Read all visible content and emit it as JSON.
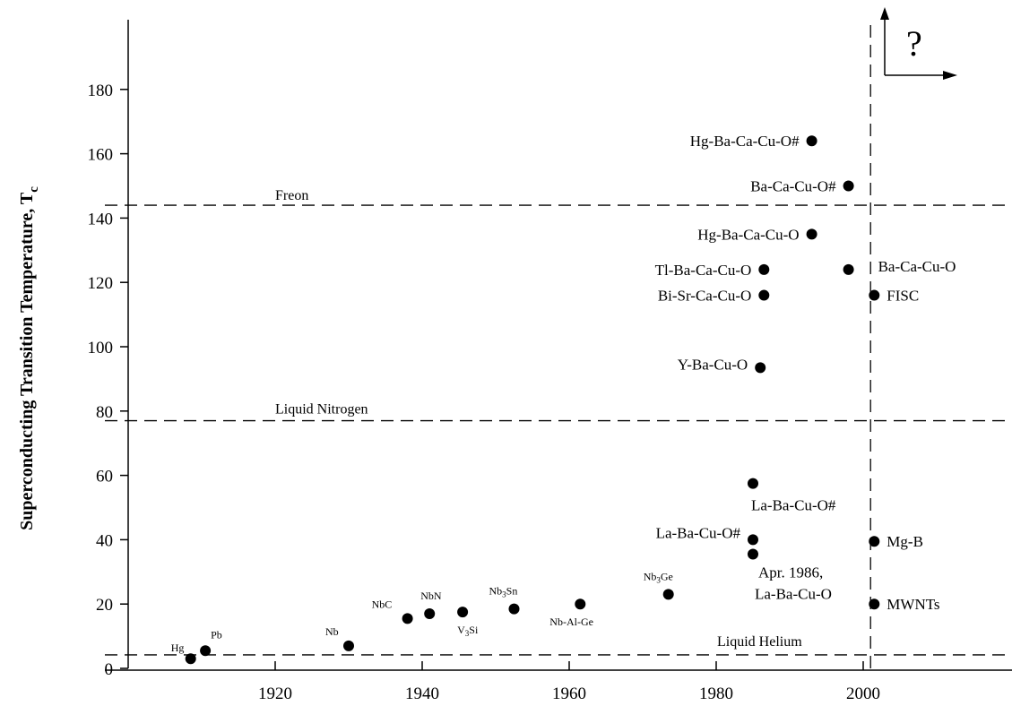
{
  "chart_data": {
    "type": "scatter",
    "title": "",
    "xlabel": "",
    "ylabel": "Superconducting Transition Temperature, T",
    "ylabel_sub": "c",
    "xlim": [
      1900,
      2019
    ],
    "ylim": [
      0,
      200
    ],
    "x_ticks": [
      1920,
      1940,
      1960,
      1980,
      2000
    ],
    "y_ticks": [
      0,
      20,
      40,
      60,
      80,
      100,
      120,
      140,
      160,
      180
    ],
    "grid": false,
    "reference_lines": [
      {
        "label": "Freon",
        "y": 144
      },
      {
        "label": "Liquid Nitrogen",
        "y": 77
      },
      {
        "label": "Liquid Helium",
        "y": 4.2
      }
    ],
    "vertical_marker": {
      "x": 2001
    },
    "arrow_annotation": "?",
    "points": [
      {
        "label": "Hg",
        "x": 1908.5,
        "y": 3,
        "small": true
      },
      {
        "label": "Pb",
        "x": 1910.5,
        "y": 5.5,
        "small": true
      },
      {
        "label": "Nb",
        "x": 1930,
        "y": 7,
        "small": true
      },
      {
        "label": "NbC",
        "x": 1938,
        "y": 15.5,
        "small": true
      },
      {
        "label": "NbN",
        "x": 1941,
        "y": 17,
        "small": true
      },
      {
        "label": "V3Si",
        "x": 1945.5,
        "y": 17.5,
        "small": true
      },
      {
        "label": "Nb3Sn",
        "x": 1952.5,
        "y": 18.5,
        "small": true
      },
      {
        "label": "Nb-Al-Ge",
        "x": 1961.5,
        "y": 20,
        "small": true
      },
      {
        "label": "Nb3Ge",
        "x": 1973.5,
        "y": 23,
        "small": true
      },
      {
        "label": "La-Ba-Cu-O",
        "sublabel": "Apr. 1986,",
        "x": 1985,
        "y": 35.5
      },
      {
        "label": "La-Ba-Cu-O#",
        "x": 1985,
        "y": 40
      },
      {
        "label": "La-Ba-Cu-O#",
        "x": 1985,
        "y": 57.5
      },
      {
        "label": "Y-Ba-Cu-O",
        "x": 1986,
        "y": 93.5
      },
      {
        "label": "Bi-Sr-Ca-Cu-O",
        "x": 1986.5,
        "y": 116
      },
      {
        "label": "Tl-Ba-Ca-Cu-O",
        "x": 1986.5,
        "y": 124
      },
      {
        "label": "Hg-Ba-Ca-Cu-O",
        "x": 1993,
        "y": 135
      },
      {
        "label": "Hg-Ba-Ca-Cu-O#",
        "x": 1993,
        "y": 164
      },
      {
        "label": "Ba-Ca-Cu-O#",
        "x": 1998,
        "y": 150
      },
      {
        "label": "Ba-Ca-Cu-O",
        "x": 1998,
        "y": 124
      },
      {
        "label": "FISC",
        "x": 2001.5,
        "y": 116
      },
      {
        "label": "Mg-B",
        "x": 2001.5,
        "y": 39.5
      },
      {
        "label": "MWNTs",
        "x": 2001.5,
        "y": 20
      }
    ]
  }
}
